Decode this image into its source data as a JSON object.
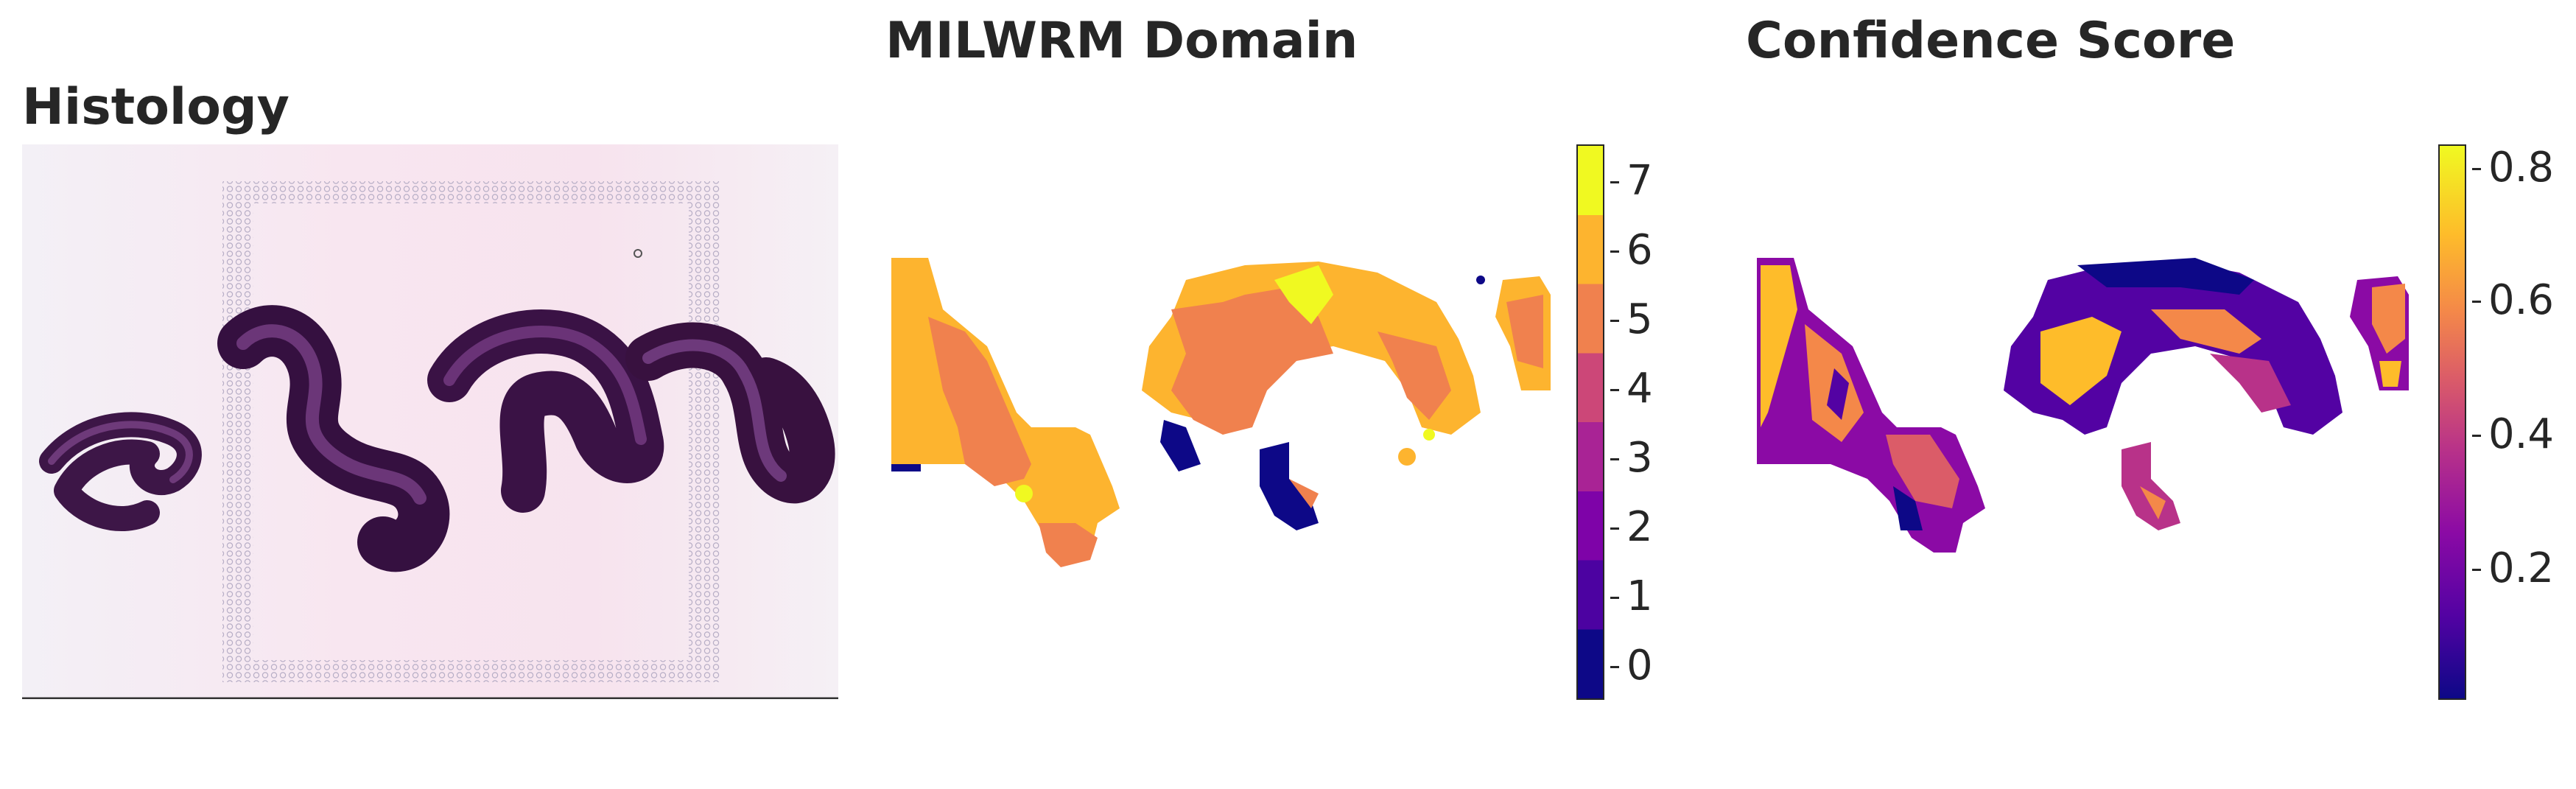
{
  "titles": {
    "histology": "Histology",
    "domain": "MILWRM Domain",
    "confidence": "Confidence Score"
  },
  "domain_colorbar": {
    "ticks": [
      "0",
      "1",
      "2",
      "3",
      "4",
      "5",
      "6",
      "7"
    ],
    "colors": [
      "#0d0887",
      "#4c02a1",
      "#7e03a8",
      "#a92395",
      "#cc4778",
      "#f0814e",
      "#fdb42f",
      "#f0f921"
    ]
  },
  "confidence_colorbar": {
    "ticks": [
      "0.2",
      "0.4",
      "0.6",
      "0.8"
    ],
    "range": [
      0.0,
      0.85
    ],
    "colormap": "plasma"
  },
  "colors": {
    "tissue": "#4a1f52",
    "tissue_dark": "#2e0d36",
    "slide_background": "#f6eef5",
    "capture_spots": "#b7aec6"
  }
}
